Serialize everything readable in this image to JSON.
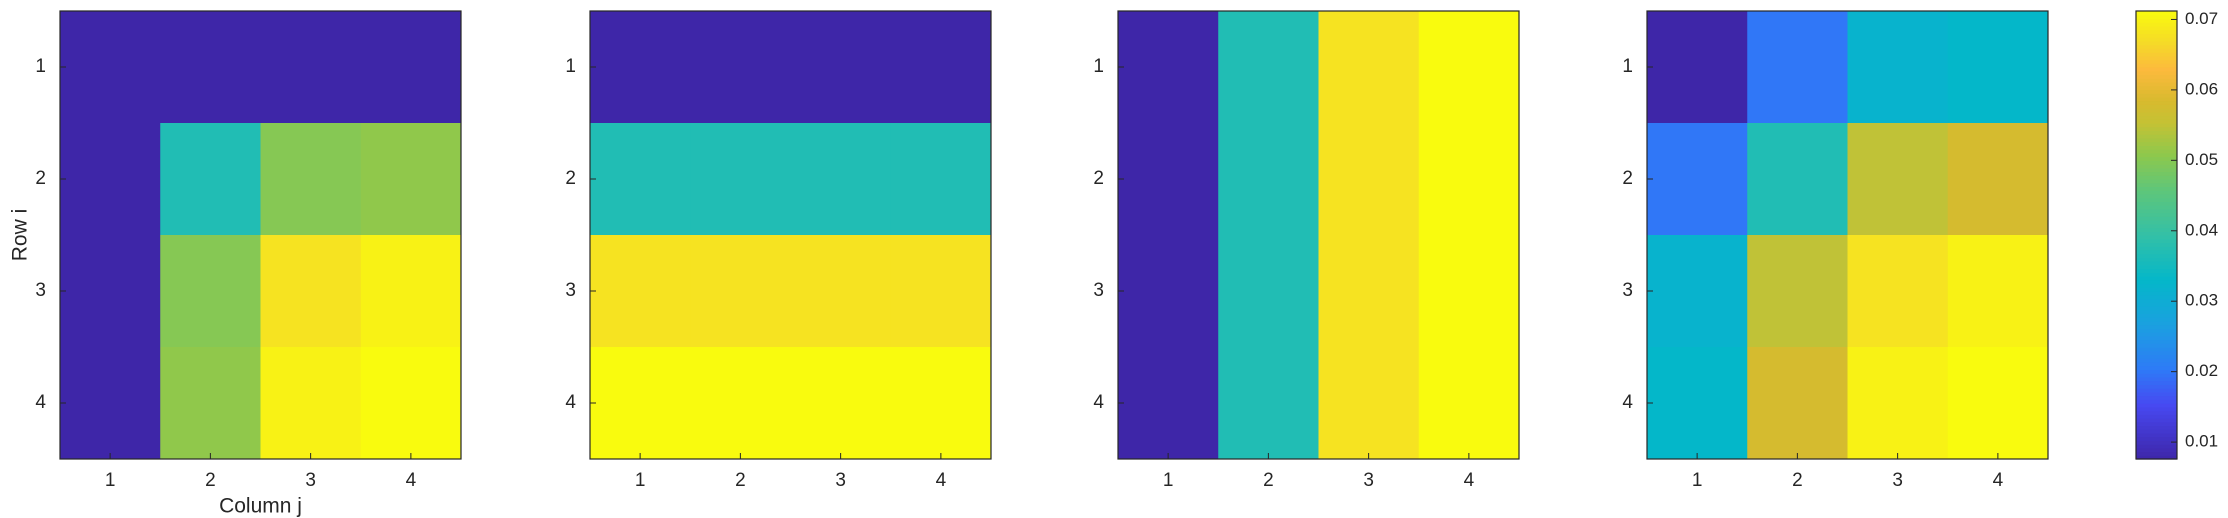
{
  "chart_data": [
    {
      "type": "heatmap",
      "x": [
        1,
        2,
        3,
        4
      ],
      "y": [
        1,
        2,
        3,
        4
      ],
      "xticks": [
        1,
        2,
        3,
        4
      ],
      "yticks": [
        1,
        2,
        3,
        4
      ],
      "xlabel": "Column j",
      "ylabel": "Row i",
      "z": [
        [
          0.0076,
          0.0076,
          0.0076,
          0.0076
        ],
        [
          0.0076,
          0.037,
          0.05,
          0.051
        ],
        [
          0.0076,
          0.05,
          0.068,
          0.07
        ],
        [
          0.0076,
          0.051,
          0.07,
          0.0712
        ]
      ]
    },
    {
      "type": "heatmap",
      "x": [
        1,
        2,
        3,
        4
      ],
      "y": [
        1,
        2,
        3,
        4
      ],
      "xticks": [
        1,
        2,
        3,
        4
      ],
      "yticks": [
        1,
        2,
        3,
        4
      ],
      "z": [
        [
          0.0076,
          0.0076,
          0.0076,
          0.0076
        ],
        [
          0.037,
          0.037,
          0.037,
          0.037
        ],
        [
          0.068,
          0.068,
          0.068,
          0.068
        ],
        [
          0.0712,
          0.0712,
          0.0712,
          0.0712
        ]
      ]
    },
    {
      "type": "heatmap",
      "x": [
        1,
        2,
        3,
        4
      ],
      "y": [
        1,
        2,
        3,
        4
      ],
      "xticks": [
        1,
        2,
        3,
        4
      ],
      "yticks": [
        1,
        2,
        3,
        4
      ],
      "z": [
        [
          0.0076,
          0.037,
          0.068,
          0.0712
        ],
        [
          0.0076,
          0.037,
          0.068,
          0.0712
        ],
        [
          0.0076,
          0.037,
          0.068,
          0.0712
        ],
        [
          0.0076,
          0.037,
          0.068,
          0.0712
        ]
      ]
    },
    {
      "type": "heatmap",
      "x": [
        1,
        2,
        3,
        4
      ],
      "y": [
        1,
        2,
        3,
        4
      ],
      "xticks": [
        1,
        2,
        3,
        4
      ],
      "yticks": [
        1,
        2,
        3,
        4
      ],
      "z": [
        [
          0.0076,
          0.02,
          0.032,
          0.033
        ],
        [
          0.02,
          0.037,
          0.055,
          0.058
        ],
        [
          0.032,
          0.055,
          0.068,
          0.07
        ],
        [
          0.033,
          0.058,
          0.07,
          0.0712
        ]
      ]
    }
  ],
  "colorbar": {
    "colormap": "parula",
    "clim": [
      0.0076,
      0.0712
    ],
    "ticks": [
      0.01,
      0.02,
      0.03,
      0.04,
      0.05,
      0.06,
      0.07
    ]
  }
}
